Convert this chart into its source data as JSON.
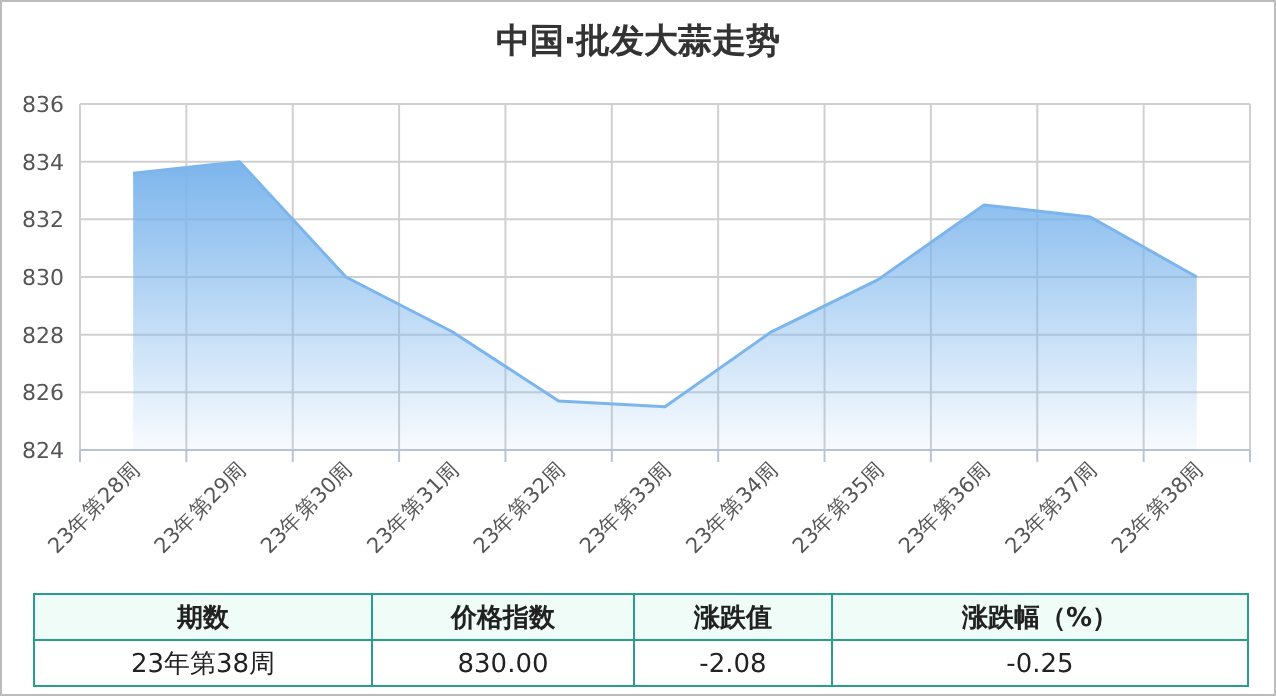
{
  "chart_data": {
    "type": "area",
    "title": "中国·批发大蒜走势",
    "categories": [
      "23年第28周",
      "23年第29周",
      "23年第30周",
      "23年第31周",
      "23年第32周",
      "23年第33周",
      "23年第34周",
      "23年第35周",
      "23年第36周",
      "23年第37周",
      "23年第38周"
    ],
    "series": [
      {
        "color": "#7cb5ec",
        "values": [
          833.6,
          834.0,
          830.0,
          828.1,
          825.7,
          825.5,
          828.1,
          829.9,
          832.5,
          832.08,
          830.0
        ]
      }
    ],
    "ylim": [
      824,
      836
    ],
    "yticks": [
      824,
      826,
      828,
      830,
      832,
      834,
      836
    ],
    "grid": true,
    "annotations": [
      "期数",
      "价格指数",
      "涨跌值",
      "涨跌幅（%）",
      "23年第38周",
      "830.00",
      "-2.08",
      "-0.25"
    ]
  }
}
